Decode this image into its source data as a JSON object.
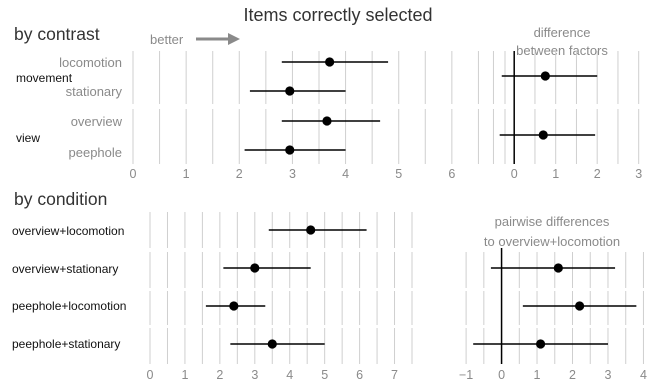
{
  "title": "Items correctly selected",
  "better_label": "better",
  "chart_data": [
    {
      "type": "scatter",
      "section": "by contrast",
      "panel_title": "",
      "xlim": [
        0,
        7
      ],
      "xticks": [
        0,
        1,
        2,
        3,
        4,
        5,
        6
      ],
      "groups": [
        {
          "label": "movement",
          "rows": [
            {
              "label": "locomotion",
              "value": 3.7,
              "low": 2.8,
              "high": 4.8
            },
            {
              "label": "stationary",
              "value": 2.95,
              "low": 2.2,
              "high": 4.0
            }
          ]
        },
        {
          "label": "view",
          "rows": [
            {
              "label": "overview",
              "value": 3.65,
              "low": 2.8,
              "high": 4.65
            },
            {
              "label": "peephole",
              "value": 2.95,
              "low": 2.1,
              "high": 4.0
            }
          ]
        }
      ]
    },
    {
      "type": "scatter",
      "section": "by contrast",
      "panel_title": [
        "difference",
        "between factors"
      ],
      "xlim": [
        -0.8,
        3.2
      ],
      "xticks": [
        0,
        1,
        2,
        3
      ],
      "rows": [
        {
          "group": "movement",
          "value": 0.75,
          "low": -0.3,
          "high": 2.0
        },
        {
          "group": "view",
          "value": 0.7,
          "low": -0.35,
          "high": 1.95
        }
      ]
    },
    {
      "type": "scatter",
      "section": "by condition",
      "panel_title": "",
      "xlim": [
        0,
        7.5
      ],
      "xticks": [
        0,
        1,
        2,
        3,
        4,
        5,
        6,
        7
      ],
      "rows": [
        {
          "label": "overview+locomotion",
          "value": 4.6,
          "low": 3.4,
          "high": 6.2
        },
        {
          "label": "overview+stationary",
          "value": 3.0,
          "low": 2.1,
          "high": 4.6
        },
        {
          "label": "peephole+locomotion",
          "value": 2.4,
          "low": 1.6,
          "high": 3.3
        },
        {
          "label": "peephole+stationary",
          "value": 3.5,
          "low": 2.3,
          "high": 5.0
        }
      ]
    },
    {
      "type": "scatter",
      "section": "by condition",
      "panel_title": [
        "pairwise differences",
        "to overview+locomotion"
      ],
      "xlim": [
        -1.2,
        4.1
      ],
      "xticks": [
        -1,
        0,
        1,
        2,
        3,
        4
      ],
      "rows": [
        {
          "row": "overview+stationary",
          "value": 1.6,
          "low": -0.3,
          "high": 3.2
        },
        {
          "row": "peephole+locomotion",
          "value": 2.2,
          "low": 0.6,
          "high": 3.8
        },
        {
          "row": "peephole+stationary",
          "value": 1.1,
          "low": -0.8,
          "high": 3.0
        }
      ]
    }
  ]
}
